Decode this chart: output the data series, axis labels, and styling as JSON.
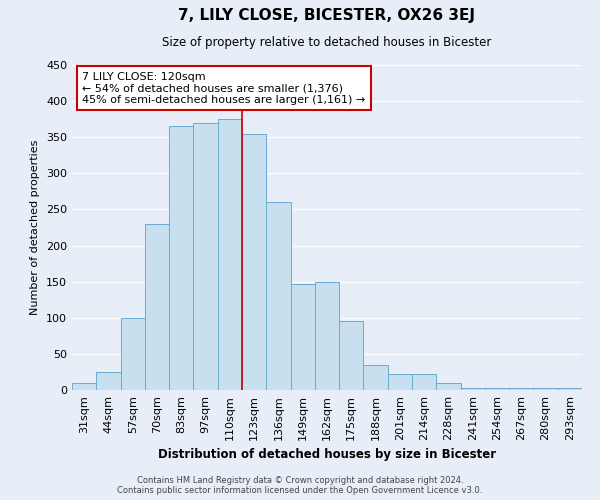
{
  "title": "7, LILY CLOSE, BICESTER, OX26 3EJ",
  "subtitle": "Size of property relative to detached houses in Bicester",
  "xlabel": "Distribution of detached houses by size in Bicester",
  "ylabel": "Number of detached properties",
  "footer_line1": "Contains HM Land Registry data © Crown copyright and database right 2024.",
  "footer_line2": "Contains public sector information licensed under the Open Government Licence v3.0.",
  "bar_labels": [
    "31sqm",
    "44sqm",
    "57sqm",
    "70sqm",
    "83sqm",
    "97sqm",
    "110sqm",
    "123sqm",
    "136sqm",
    "149sqm",
    "162sqm",
    "175sqm",
    "188sqm",
    "201sqm",
    "214sqm",
    "228sqm",
    "241sqm",
    "254sqm",
    "267sqm",
    "280sqm",
    "293sqm"
  ],
  "bar_values": [
    10,
    25,
    100,
    230,
    365,
    370,
    375,
    355,
    260,
    147,
    150,
    96,
    35,
    22,
    22,
    10,
    3,
    3,
    3,
    3,
    3
  ],
  "bar_color": "#c8dff0",
  "bar_edge_color": "#6aabce",
  "property_line_label": "7 LILY CLOSE: 120sqm",
  "annotation_line1": "← 54% of detached houses are smaller (1,376)",
  "annotation_line2": "45% of semi-detached houses are larger (1,161) →",
  "annotation_box_color": "#ffffff",
  "annotation_box_edge": "#cc0000",
  "property_line_color": "#cc0000",
  "property_line_x": 6.5,
  "ylim": [
    0,
    450
  ],
  "yticks": [
    0,
    50,
    100,
    150,
    200,
    250,
    300,
    350,
    400,
    450
  ],
  "background_color": "#e8eef8",
  "grid_color": "#ffffff"
}
